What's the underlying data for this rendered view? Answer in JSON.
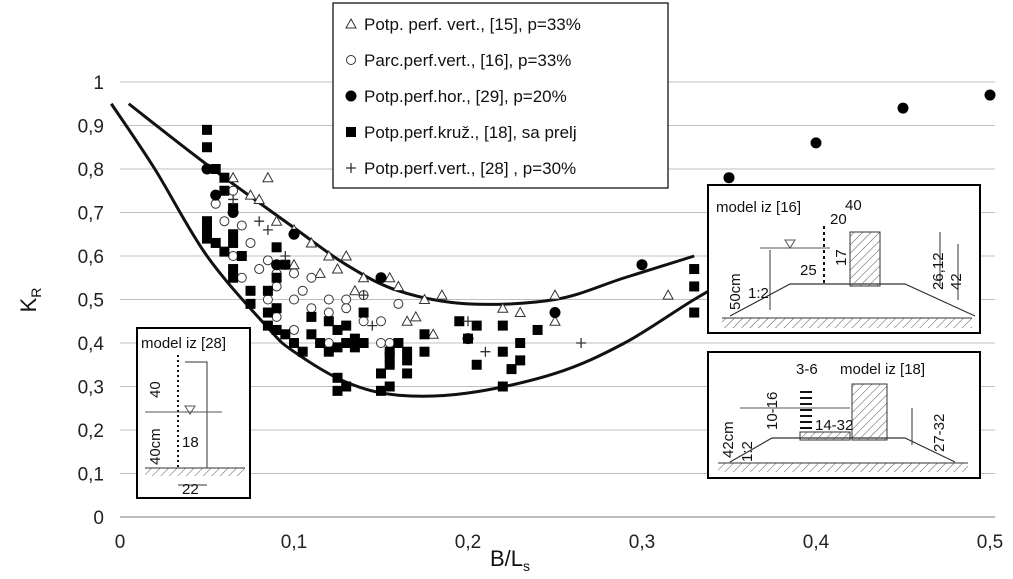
{
  "chart_data": {
    "type": "scatter",
    "title": "",
    "xlabel": "B/L",
    "xlabel_sub": "s",
    "ylabel": "K",
    "ylabel_sub": "R",
    "xlim": [
      0,
      0.5
    ],
    "ylim": [
      0,
      1.0
    ],
    "x_ticks": [
      "0",
      "0,1",
      "0,2",
      "0,3",
      "0,4",
      "0,5"
    ],
    "y_ticks": [
      "0",
      "0,1",
      "0,2",
      "0,3",
      "0,4",
      "0,5",
      "0,6",
      "0,7",
      "0,8",
      "0,9",
      "1"
    ],
    "grid": "horizontal",
    "legend_position": "top-center",
    "legend": [
      {
        "marker": "triangle-open",
        "label": "Potp. perf. vert., [15],  p=33%"
      },
      {
        "marker": "circle-open",
        "label": "Parc.perf.vert., [16],  p=33%"
      },
      {
        "marker": "circle-filled",
        "label": "Potp.perf.hor., [29], p=20%"
      },
      {
        "marker": "square-filled",
        "label": "Potp.perf.kruž., [18], sa prelj"
      },
      {
        "marker": "plus",
        "label": "Potp.perf.vert., [28] , p=30%"
      }
    ],
    "series": [
      {
        "name": "Potp. perf. vert., [15],  p=33%",
        "marker": "triangle-open",
        "points": [
          [
            0.065,
            0.78
          ],
          [
            0.075,
            0.74
          ],
          [
            0.085,
            0.78
          ],
          [
            0.08,
            0.73
          ],
          [
            0.09,
            0.68
          ],
          [
            0.1,
            0.66
          ],
          [
            0.11,
            0.63
          ],
          [
            0.12,
            0.6
          ],
          [
            0.13,
            0.6
          ],
          [
            0.125,
            0.57
          ],
          [
            0.14,
            0.55
          ],
          [
            0.155,
            0.55
          ],
          [
            0.16,
            0.53
          ],
          [
            0.175,
            0.5
          ],
          [
            0.185,
            0.51
          ],
          [
            0.165,
            0.45
          ],
          [
            0.17,
            0.46
          ],
          [
            0.18,
            0.42
          ],
          [
            0.22,
            0.48
          ],
          [
            0.23,
            0.47
          ],
          [
            0.25,
            0.51
          ],
          [
            0.25,
            0.45
          ],
          [
            0.315,
            0.51
          ],
          [
            0.1,
            0.58
          ],
          [
            0.115,
            0.56
          ],
          [
            0.135,
            0.52
          ]
        ]
      },
      {
        "name": "Parc.perf.vert., [16],  p=33%",
        "marker": "circle-open",
        "points": [
          [
            0.055,
            0.72
          ],
          [
            0.06,
            0.68
          ],
          [
            0.065,
            0.75
          ],
          [
            0.07,
            0.67
          ],
          [
            0.065,
            0.6
          ],
          [
            0.07,
            0.55
          ],
          [
            0.075,
            0.63
          ],
          [
            0.08,
            0.57
          ],
          [
            0.085,
            0.59
          ],
          [
            0.09,
            0.56
          ],
          [
            0.095,
            0.58
          ],
          [
            0.09,
            0.53
          ],
          [
            0.1,
            0.56
          ],
          [
            0.1,
            0.5
          ],
          [
            0.105,
            0.52
          ],
          [
            0.11,
            0.55
          ],
          [
            0.11,
            0.48
          ],
          [
            0.12,
            0.5
          ],
          [
            0.12,
            0.47
          ],
          [
            0.13,
            0.5
          ],
          [
            0.13,
            0.48
          ],
          [
            0.14,
            0.45
          ],
          [
            0.14,
            0.51
          ],
          [
            0.15,
            0.45
          ],
          [
            0.15,
            0.4
          ],
          [
            0.155,
            0.4
          ],
          [
            0.16,
            0.49
          ],
          [
            0.12,
            0.4
          ],
          [
            0.1,
            0.43
          ],
          [
            0.09,
            0.46
          ],
          [
            0.085,
            0.5
          ]
        ]
      },
      {
        "name": "Potp.perf.hor., [29], p=20%",
        "marker": "circle-filled",
        "points": [
          [
            0.05,
            0.8
          ],
          [
            0.1,
            0.65
          ],
          [
            0.15,
            0.55
          ],
          [
            0.2,
            0.41
          ],
          [
            0.25,
            0.47
          ],
          [
            0.3,
            0.58
          ],
          [
            0.35,
            0.78
          ],
          [
            0.4,
            0.86
          ],
          [
            0.45,
            0.94
          ],
          [
            0.5,
            0.97
          ],
          [
            0.055,
            0.74
          ],
          [
            0.065,
            0.7
          ],
          [
            0.09,
            0.58
          ]
        ]
      },
      {
        "name": "Potp.perf.kruž., [18], sa prelj",
        "marker": "square-filled",
        "points": [
          [
            0.05,
            0.89
          ],
          [
            0.05,
            0.85
          ],
          [
            0.055,
            0.8
          ],
          [
            0.06,
            0.78
          ],
          [
            0.06,
            0.75
          ],
          [
            0.065,
            0.71
          ],
          [
            0.05,
            0.68
          ],
          [
            0.05,
            0.66
          ],
          [
            0.05,
            0.65
          ],
          [
            0.05,
            0.64
          ],
          [
            0.055,
            0.63
          ],
          [
            0.06,
            0.61
          ],
          [
            0.065,
            0.65
          ],
          [
            0.065,
            0.63
          ],
          [
            0.07,
            0.6
          ],
          [
            0.065,
            0.57
          ],
          [
            0.065,
            0.55
          ],
          [
            0.075,
            0.52
          ],
          [
            0.075,
            0.49
          ],
          [
            0.085,
            0.52
          ],
          [
            0.085,
            0.47
          ],
          [
            0.085,
            0.44
          ],
          [
            0.09,
            0.43
          ],
          [
            0.09,
            0.48
          ],
          [
            0.09,
            0.62
          ],
          [
            0.095,
            0.58
          ],
          [
            0.09,
            0.55
          ],
          [
            0.095,
            0.42
          ],
          [
            0.1,
            0.4
          ],
          [
            0.105,
            0.38
          ],
          [
            0.11,
            0.46
          ],
          [
            0.11,
            0.42
          ],
          [
            0.115,
            0.4
          ],
          [
            0.12,
            0.38
          ],
          [
            0.12,
            0.45
          ],
          [
            0.125,
            0.43
          ],
          [
            0.125,
            0.39
          ],
          [
            0.13,
            0.44
          ],
          [
            0.13,
            0.4
          ],
          [
            0.135,
            0.41
          ],
          [
            0.135,
            0.39
          ],
          [
            0.14,
            0.47
          ],
          [
            0.14,
            0.4
          ],
          [
            0.125,
            0.32
          ],
          [
            0.125,
            0.29
          ],
          [
            0.13,
            0.3
          ],
          [
            0.15,
            0.29
          ],
          [
            0.155,
            0.3
          ],
          [
            0.15,
            0.33
          ],
          [
            0.155,
            0.38
          ],
          [
            0.155,
            0.35
          ],
          [
            0.16,
            0.4
          ],
          [
            0.165,
            0.38
          ],
          [
            0.165,
            0.36
          ],
          [
            0.175,
            0.42
          ],
          [
            0.175,
            0.38
          ],
          [
            0.195,
            0.45
          ],
          [
            0.205,
            0.44
          ],
          [
            0.2,
            0.41
          ],
          [
            0.205,
            0.35
          ],
          [
            0.22,
            0.44
          ],
          [
            0.22,
            0.38
          ],
          [
            0.23,
            0.4
          ],
          [
            0.23,
            0.36
          ],
          [
            0.225,
            0.34
          ],
          [
            0.24,
            0.43
          ],
          [
            0.22,
            0.3
          ],
          [
            0.33,
            0.57
          ],
          [
            0.33,
            0.53
          ],
          [
            0.33,
            0.47
          ],
          [
            0.155,
            0.37
          ],
          [
            0.165,
            0.33
          ]
        ]
      },
      {
        "name": "Potp.perf.vert., [28] , p=30%",
        "marker": "plus",
        "points": [
          [
            0.065,
            0.73
          ],
          [
            0.08,
            0.68
          ],
          [
            0.085,
            0.66
          ],
          [
            0.095,
            0.6
          ],
          [
            0.14,
            0.51
          ],
          [
            0.145,
            0.44
          ],
          [
            0.2,
            0.45
          ],
          [
            0.21,
            0.38
          ],
          [
            0.265,
            0.4
          ]
        ]
      }
    ],
    "curves": [
      {
        "name": "",
        "points": [
          [
            0.005,
            0.95
          ],
          [
            0.05,
            0.81
          ],
          [
            0.1,
            0.665
          ],
          [
            0.13,
            0.58
          ],
          [
            0.16,
            0.52
          ],
          [
            0.2,
            0.49
          ],
          [
            0.25,
            0.5
          ],
          [
            0.29,
            0.55
          ],
          [
            0.33,
            0.6
          ]
        ]
      },
      {
        "name": "",
        "points": [
          [
            -0.005,
            0.95
          ],
          [
            0.02,
            0.8
          ],
          [
            0.05,
            0.6
          ],
          [
            0.085,
            0.435
          ],
          [
            0.1,
            0.38
          ],
          [
            0.13,
            0.31
          ],
          [
            0.16,
            0.28
          ],
          [
            0.2,
            0.285
          ],
          [
            0.25,
            0.33
          ],
          [
            0.29,
            0.4
          ],
          [
            0.33,
            0.5
          ],
          [
            0.365,
            0.58
          ]
        ]
      }
    ]
  },
  "insets": {
    "model16": {
      "title": "model iz [16]",
      "dims": [
        "40",
        "20",
        "17",
        "25",
        "26,12",
        "42",
        "50cm",
        "1:2"
      ]
    },
    "model18": {
      "title": "model iz [18]",
      "dims": [
        "3-6",
        "10-16",
        "14-32",
        "42cm",
        "1:2",
        "27-32"
      ]
    },
    "model28": {
      "title": "model iz [28]",
      "dims": [
        "40",
        "40cm",
        "18",
        "22"
      ]
    }
  }
}
